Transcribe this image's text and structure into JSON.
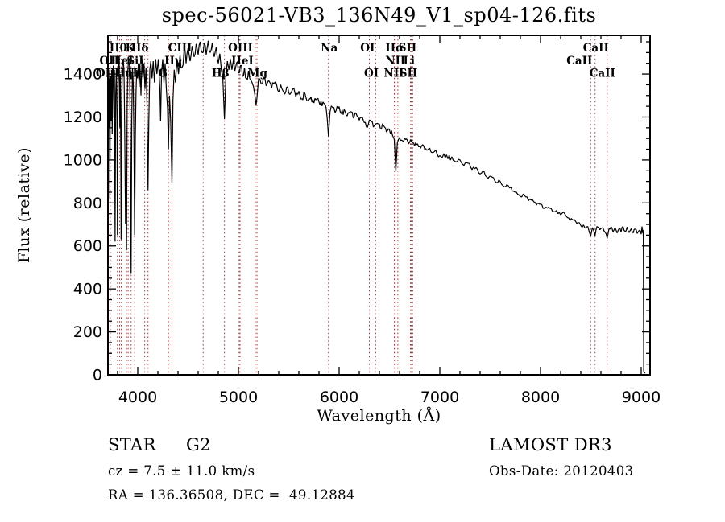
{
  "title": "spec-56021-VB3_136N49_V1_sp04-126.fits",
  "colors": {
    "background": "#ffffff",
    "spectrum": "#000000",
    "line_marker": "#a03b3b",
    "text": "#000000"
  },
  "footer": {
    "class_label": "STAR",
    "class_value": "G2",
    "cz_line": "cz = 7.5 ± 11.0 km/s",
    "radec_line": "RA = 136.36508, DEC =  49.12884",
    "survey": "LAMOST DR3",
    "obs_date": "Obs-Date: 20120403"
  },
  "chart_data": {
    "type": "line",
    "title": "spec-56021-VB3_136N49_V1_sp04-126.fits",
    "xlabel": "Wavelength (Å)",
    "ylabel": "Flux (relative)",
    "xlim": [
      3704,
      9088
    ],
    "ylim": [
      0,
      1580
    ],
    "grid": false,
    "xticks": [
      4000,
      5000,
      6000,
      7000,
      8000,
      9000
    ],
    "x_minor_step": 200,
    "yticks": [
      0,
      200,
      400,
      600,
      800,
      1000,
      1200,
      1400
    ],
    "y_minor_step": 50,
    "spectral_lines": [
      3727,
      3798,
      3820,
      3835,
      3889,
      3905,
      3934,
      3969,
      4069,
      4102,
      4305,
      4340,
      4650,
      4861,
      5007,
      5016,
      5167,
      5184,
      5894,
      6300,
      6363,
      6548,
      6563,
      6583,
      6708,
      6716,
      6731,
      8498,
      8542,
      8662
    ],
    "line_labels": [
      {
        "text": "Hθ",
        "pos": 3806,
        "row": 1
      },
      {
        "text": "K",
        "pos": 3924,
        "row": 1
      },
      {
        "text": "Hδ",
        "pos": 4020,
        "row": 1
      },
      {
        "text": "CIII",
        "pos": 4420,
        "row": 1
      },
      {
        "text": "OIII",
        "pos": 5020,
        "row": 1
      },
      {
        "text": "Na",
        "pos": 5902,
        "row": 1
      },
      {
        "text": "OI",
        "pos": 6282,
        "row": 1
      },
      {
        "text": "Hα",
        "pos": 6552,
        "row": 1
      },
      {
        "text": "SII",
        "pos": 6680,
        "row": 1
      },
      {
        "text": "CaII",
        "pos": 8550,
        "row": 1
      },
      {
        "text": "OII",
        "pos": 3718,
        "row": 2
      },
      {
        "text": "HeI",
        "pos": 3846,
        "row": 2
      },
      {
        "text": "SiI",
        "pos": 3976,
        "row": 2
      },
      {
        "text": "Hγ",
        "pos": 4352,
        "row": 2
      },
      {
        "text": "HeI",
        "pos": 5040,
        "row": 2
      },
      {
        "text": "NII",
        "pos": 6558,
        "row": 2
      },
      {
        "text": "Li",
        "pos": 6694,
        "row": 2
      },
      {
        "text": "CaII",
        "pos": 8386,
        "row": 2
      },
      {
        "text": "OIII",
        "pos": 3706,
        "row": 3
      },
      {
        "text": "Hη",
        "pos": 3862,
        "row": 3
      },
      {
        "text": "Hε",
        "pos": 3980,
        "row": 3
      },
      {
        "text": "G",
        "pos": 4250,
        "row": 3
      },
      {
        "text": "Hβ",
        "pos": 4822,
        "row": 3
      },
      {
        "text": "Mg",
        "pos": 5190,
        "row": 3
      },
      {
        "text": "OI",
        "pos": 6320,
        "row": 3
      },
      {
        "text": "NII",
        "pos": 6544,
        "row": 3
      },
      {
        "text": "SII",
        "pos": 6688,
        "row": 3
      },
      {
        "text": "CaII",
        "pos": 8614,
        "row": 3
      }
    ],
    "noise_regions": [
      {
        "from": 3704,
        "to": 4400,
        "amp": 55
      },
      {
        "from": 4400,
        "to": 5200,
        "amp": 32
      },
      {
        "from": 5200,
        "to": 6300,
        "amp": 18
      },
      {
        "from": 6300,
        "to": 7400,
        "amp": 14
      },
      {
        "from": 7400,
        "to": 9016,
        "amp": 10
      },
      {
        "from": 9016,
        "to": 9088,
        "amp": 4
      }
    ],
    "spectrum_anchors": [
      [
        3704,
        1180
      ],
      [
        3705,
        1500
      ],
      [
        3707,
        900
      ],
      [
        3709,
        820
      ],
      [
        3712,
        1420
      ],
      [
        3716,
        1150
      ],
      [
        3720,
        1380
      ],
      [
        3724,
        1000
      ],
      [
        3727,
        1240
      ],
      [
        3731,
        1390
      ],
      [
        3736,
        1180
      ],
      [
        3741,
        1420
      ],
      [
        3746,
        1120
      ],
      [
        3752,
        1400
      ],
      [
        3758,
        1440
      ],
      [
        3764,
        1200
      ],
      [
        3769,
        1420
      ],
      [
        3775,
        620
      ],
      [
        3781,
        1300
      ],
      [
        3788,
        1430
      ],
      [
        3794,
        1200
      ],
      [
        3798,
        650
      ],
      [
        3804,
        1350
      ],
      [
        3810,
        1440
      ],
      [
        3816,
        1460
      ],
      [
        3822,
        1150
      ],
      [
        3828,
        1400
      ],
      [
        3835,
        630
      ],
      [
        3841,
        1250
      ],
      [
        3848,
        1440
      ],
      [
        3856,
        1460
      ],
      [
        3864,
        1420
      ],
      [
        3871,
        1120
      ],
      [
        3879,
        700
      ],
      [
        3885,
        900
      ],
      [
        3889,
        580
      ],
      [
        3895,
        1250
      ],
      [
        3902,
        1420
      ],
      [
        3910,
        1470
      ],
      [
        3918,
        1440
      ],
      [
        3926,
        1150
      ],
      [
        3934,
        470
      ],
      [
        3941,
        1200
      ],
      [
        3948,
        1430
      ],
      [
        3955,
        1360
      ],
      [
        3962,
        1100
      ],
      [
        3969,
        650
      ],
      [
        3976,
        1100
      ],
      [
        3983,
        1320
      ],
      [
        3990,
        1420
      ],
      [
        3998,
        1380
      ],
      [
        4006,
        1450
      ],
      [
        4014,
        1340
      ],
      [
        4022,
        1450
      ],
      [
        4032,
        1300
      ],
      [
        4042,
        1470
      ],
      [
        4052,
        1380
      ],
      [
        4062,
        1450
      ],
      [
        4072,
        1330
      ],
      [
        4082,
        1430
      ],
      [
        4092,
        1260
      ],
      [
        4102,
        860
      ],
      [
        4110,
        1180
      ],
      [
        4120,
        1420
      ],
      [
        4130,
        1460
      ],
      [
        4142,
        1380
      ],
      [
        4154,
        1460
      ],
      [
        4166,
        1360
      ],
      [
        4178,
        1470
      ],
      [
        4190,
        1400
      ],
      [
        4205,
        1470
      ],
      [
        4220,
        1330
      ],
      [
        4227,
        1180
      ],
      [
        4236,
        1400
      ],
      [
        4248,
        1470
      ],
      [
        4260,
        1360
      ],
      [
        4272,
        1450
      ],
      [
        4284,
        1330
      ],
      [
        4296,
        1240
      ],
      [
        4305,
        1050
      ],
      [
        4315,
        1300
      ],
      [
        4327,
        1180
      ],
      [
        4340,
        890
      ],
      [
        4350,
        1280
      ],
      [
        4362,
        1420
      ],
      [
        4375,
        1360
      ],
      [
        4390,
        1470
      ],
      [
        4405,
        1400
      ],
      [
        4420,
        1490
      ],
      [
        4440,
        1430
      ],
      [
        4460,
        1510
      ],
      [
        4480,
        1450
      ],
      [
        4500,
        1520
      ],
      [
        4520,
        1460
      ],
      [
        4540,
        1530
      ],
      [
        4560,
        1480
      ],
      [
        4580,
        1540
      ],
      [
        4600,
        1490
      ],
      [
        4620,
        1550
      ],
      [
        4640,
        1500
      ],
      [
        4660,
        1545
      ],
      [
        4680,
        1490
      ],
      [
        4700,
        1555
      ],
      [
        4720,
        1500
      ],
      [
        4740,
        1545
      ],
      [
        4760,
        1480
      ],
      [
        4780,
        1525
      ],
      [
        4800,
        1450
      ],
      [
        4815,
        1495
      ],
      [
        4830,
        1420
      ],
      [
        4845,
        1380
      ],
      [
        4861,
        1190
      ],
      [
        4875,
        1390
      ],
      [
        4890,
        1460
      ],
      [
        4905,
        1420
      ],
      [
        4920,
        1470
      ],
      [
        4935,
        1420
      ],
      [
        4950,
        1465
      ],
      [
        4965,
        1415
      ],
      [
        4980,
        1450
      ],
      [
        5000,
        1405
      ],
      [
        5020,
        1440
      ],
      [
        5040,
        1390
      ],
      [
        5060,
        1430
      ],
      [
        5080,
        1380
      ],
      [
        5100,
        1415
      ],
      [
        5125,
        1370
      ],
      [
        5150,
        1340
      ],
      [
        5167,
        1290
      ],
      [
        5175,
        1255
      ],
      [
        5184,
        1290
      ],
      [
        5200,
        1380
      ],
      [
        5225,
        1355
      ],
      [
        5250,
        1385
      ],
      [
        5275,
        1345
      ],
      [
        5300,
        1370
      ],
      [
        5330,
        1335
      ],
      [
        5360,
        1360
      ],
      [
        5390,
        1325
      ],
      [
        5420,
        1350
      ],
      [
        5450,
        1315
      ],
      [
        5480,
        1340
      ],
      [
        5510,
        1305
      ],
      [
        5540,
        1330
      ],
      [
        5570,
        1295
      ],
      [
        5600,
        1320
      ],
      [
        5630,
        1285
      ],
      [
        5660,
        1310
      ],
      [
        5690,
        1275
      ],
      [
        5720,
        1295
      ],
      [
        5750,
        1265
      ],
      [
        5780,
        1285
      ],
      [
        5810,
        1255
      ],
      [
        5840,
        1270
      ],
      [
        5870,
        1245
      ],
      [
        5894,
        1110
      ],
      [
        5910,
        1225
      ],
      [
        5935,
        1245
      ],
      [
        5960,
        1220
      ],
      [
        5990,
        1240
      ],
      [
        6020,
        1215
      ],
      [
        6050,
        1235
      ],
      [
        6080,
        1205
      ],
      [
        6110,
        1225
      ],
      [
        6140,
        1195
      ],
      [
        6170,
        1215
      ],
      [
        6200,
        1185
      ],
      [
        6230,
        1200
      ],
      [
        6260,
        1175
      ],
      [
        6290,
        1165
      ],
      [
        6320,
        1180
      ],
      [
        6350,
        1160
      ],
      [
        6380,
        1170
      ],
      [
        6410,
        1145
      ],
      [
        6440,
        1160
      ],
      [
        6470,
        1130
      ],
      [
        6500,
        1140
      ],
      [
        6530,
        1115
      ],
      [
        6548,
        1095
      ],
      [
        6563,
        945
      ],
      [
        6578,
        1080
      ],
      [
        6600,
        1105
      ],
      [
        6630,
        1090
      ],
      [
        6660,
        1095
      ],
      [
        6690,
        1075
      ],
      [
        6720,
        1085
      ],
      [
        6750,
        1065
      ],
      [
        6780,
        1075
      ],
      [
        6810,
        1055
      ],
      [
        6840,
        1065
      ],
      [
        6870,
        1045
      ],
      [
        6900,
        1055
      ],
      [
        6930,
        1035
      ],
      [
        6960,
        1045
      ],
      [
        7000,
        1020
      ],
      [
        7040,
        1030
      ],
      [
        7080,
        1005
      ],
      [
        7120,
        1015
      ],
      [
        7160,
        990
      ],
      [
        7200,
        1000
      ],
      [
        7240,
        975
      ],
      [
        7280,
        985
      ],
      [
        7320,
        955
      ],
      [
        7360,
        965
      ],
      [
        7400,
        935
      ],
      [
        7440,
        945
      ],
      [
        7480,
        915
      ],
      [
        7520,
        920
      ],
      [
        7560,
        895
      ],
      [
        7600,
        900
      ],
      [
        7640,
        875
      ],
      [
        7680,
        880
      ],
      [
        7720,
        855
      ],
      [
        7760,
        850
      ],
      [
        7800,
        830
      ],
      [
        7840,
        835
      ],
      [
        7880,
        810
      ],
      [
        7920,
        815
      ],
      [
        7960,
        790
      ],
      [
        8000,
        795
      ],
      [
        8040,
        775
      ],
      [
        8080,
        780
      ],
      [
        8120,
        760
      ],
      [
        8160,
        765
      ],
      [
        8200,
        745
      ],
      [
        8240,
        750
      ],
      [
        8280,
        730
      ],
      [
        8320,
        720
      ],
      [
        8360,
        705
      ],
      [
        8400,
        695
      ],
      [
        8440,
        685
      ],
      [
        8470,
        690
      ],
      [
        8498,
        645
      ],
      [
        8515,
        685
      ],
      [
        8542,
        648
      ],
      [
        8560,
        690
      ],
      [
        8590,
        675
      ],
      [
        8620,
        685
      ],
      [
        8640,
        665
      ],
      [
        8662,
        635
      ],
      [
        8680,
        680
      ],
      [
        8700,
        690
      ],
      [
        8720,
        665
      ],
      [
        8740,
        685
      ],
      [
        8760,
        660
      ],
      [
        8780,
        680
      ],
      [
        8800,
        665
      ],
      [
        8820,
        690
      ],
      [
        8840,
        668
      ],
      [
        8860,
        688
      ],
      [
        8880,
        662
      ],
      [
        8900,
        680
      ],
      [
        8920,
        660
      ],
      [
        8940,
        678
      ],
      [
        8960,
        658
      ],
      [
        8980,
        672
      ],
      [
        9000,
        655
      ],
      [
        9008,
        690
      ],
      [
        9014,
        660
      ],
      [
        9018,
        675
      ],
      [
        9021,
        640
      ],
      [
        9023,
        300
      ],
      [
        9025,
        15
      ],
      [
        9032,
        10
      ],
      [
        9040,
        8
      ]
    ]
  }
}
